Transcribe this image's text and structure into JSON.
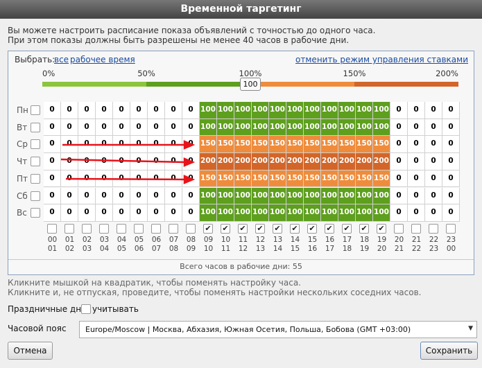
{
  "dialog": {
    "title": "Временной таргетинг",
    "intro": [
      "Вы можете настроить расписание показа объявлений с точностью до одного часа.",
      "При этом показы должны быть разрешены не менее 40 часов в рабочие дни."
    ],
    "select_label": "Выбрать:",
    "select_links": [
      "все",
      "рабочее время"
    ],
    "cancel_bids_link": "отменить режим управления ставками",
    "scale": {
      "ticks": [
        {
          "value": 0,
          "label": "0%"
        },
        {
          "value": 50,
          "label": "50%"
        },
        {
          "value": 100,
          "label": "100%"
        },
        {
          "value": 150,
          "label": "150%"
        },
        {
          "value": 200,
          "label": "200%"
        }
      ],
      "colors": [
        "#8cc43c",
        "#5e9f1e",
        "#ef8c3c",
        "#d2662a"
      ],
      "slider": 100
    },
    "cell_colors": [
      {
        "value": 0,
        "color": "#ffffff",
        "text": "#000000"
      },
      {
        "value": 100,
        "color": "#5e9f1e",
        "text": "#ffffff"
      },
      {
        "value": 150,
        "color": "#ef8c3c",
        "text": "#ffffff"
      },
      {
        "value": 200,
        "color": "#d2662a",
        "text": "#ffffff"
      }
    ],
    "schedule": {
      "rows": [
        {
          "day": "Пн",
          "values": [
            0,
            0,
            0,
            0,
            0,
            0,
            0,
            0,
            0,
            100,
            100,
            100,
            100,
            100,
            100,
            100,
            100,
            100,
            100,
            100,
            0,
            0,
            0,
            0
          ]
        },
        {
          "day": "Вт",
          "values": [
            0,
            0,
            0,
            0,
            0,
            0,
            0,
            0,
            0,
            100,
            100,
            100,
            100,
            100,
            100,
            100,
            100,
            100,
            100,
            100,
            0,
            0,
            0,
            0
          ]
        },
        {
          "day": "Ср",
          "values": [
            0,
            0,
            0,
            0,
            0,
            0,
            0,
            0,
            0,
            150,
            150,
            150,
            150,
            150,
            150,
            150,
            150,
            150,
            150,
            150,
            0,
            0,
            0,
            0
          ]
        },
        {
          "day": "Чт",
          "values": [
            0,
            0,
            0,
            0,
            0,
            0,
            0,
            0,
            0,
            200,
            200,
            200,
            200,
            200,
            200,
            200,
            200,
            200,
            200,
            200,
            0,
            0,
            0,
            0
          ]
        },
        {
          "day": "Пт",
          "values": [
            0,
            0,
            0,
            0,
            0,
            0,
            0,
            0,
            0,
            150,
            150,
            150,
            150,
            150,
            150,
            150,
            150,
            150,
            150,
            150,
            0,
            0,
            0,
            0
          ]
        },
        {
          "day": "Сб",
          "values": [
            0,
            0,
            0,
            0,
            0,
            0,
            0,
            0,
            0,
            100,
            100,
            100,
            100,
            100,
            100,
            100,
            100,
            100,
            100,
            100,
            0,
            0,
            0,
            0
          ]
        },
        {
          "day": "Вс",
          "values": [
            0,
            0,
            0,
            0,
            0,
            0,
            0,
            0,
            0,
            100,
            100,
            100,
            100,
            100,
            100,
            100,
            100,
            100,
            100,
            100,
            0,
            0,
            0,
            0
          ]
        }
      ],
      "hours": [
        {
          "from": "00",
          "to": "01",
          "checked": false
        },
        {
          "from": "01",
          "to": "02",
          "checked": false
        },
        {
          "from": "02",
          "to": "03",
          "checked": false
        },
        {
          "from": "03",
          "to": "04",
          "checked": false
        },
        {
          "from": "04",
          "to": "05",
          "checked": false
        },
        {
          "from": "05",
          "to": "06",
          "checked": false
        },
        {
          "from": "06",
          "to": "07",
          "checked": false
        },
        {
          "from": "07",
          "to": "08",
          "checked": false
        },
        {
          "from": "08",
          "to": "09",
          "checked": false
        },
        {
          "from": "09",
          "to": "10",
          "checked": true
        },
        {
          "from": "10",
          "to": "11",
          "checked": true
        },
        {
          "from": "11",
          "to": "12",
          "checked": true
        },
        {
          "from": "12",
          "to": "13",
          "checked": true
        },
        {
          "from": "13",
          "to": "14",
          "checked": true
        },
        {
          "from": "14",
          "to": "15",
          "checked": true
        },
        {
          "from": "15",
          "to": "16",
          "checked": true
        },
        {
          "from": "16",
          "to": "17",
          "checked": true
        },
        {
          "from": "17",
          "to": "18",
          "checked": true
        },
        {
          "from": "18",
          "to": "19",
          "checked": true
        },
        {
          "from": "19",
          "to": "20",
          "checked": true
        },
        {
          "from": "20",
          "to": "21",
          "checked": false
        },
        {
          "from": "21",
          "to": "22",
          "checked": false
        },
        {
          "from": "22",
          "to": "23",
          "checked": false
        },
        {
          "from": "23",
          "to": "00",
          "checked": false
        }
      ]
    },
    "total": "Всего часов в рабочие дни: 55",
    "hints": [
      "Кликните мышкой на квадратик, чтобы поменять настройку часа.",
      "Кликните и, не отпуская, проведите, чтобы поменять настройки нескольких соседних часов."
    ],
    "holidays_label": "Праздничные дни",
    "holidays_option": "учитывать",
    "timezone_label": "Часовой пояс",
    "timezone_value": "Europe/Moscow | Москва, Абхазия, Южная Осетия, Польша, Бобова (GMT +03:00)",
    "cancel_button": "Отмена",
    "save_button": "Сохранить"
  }
}
